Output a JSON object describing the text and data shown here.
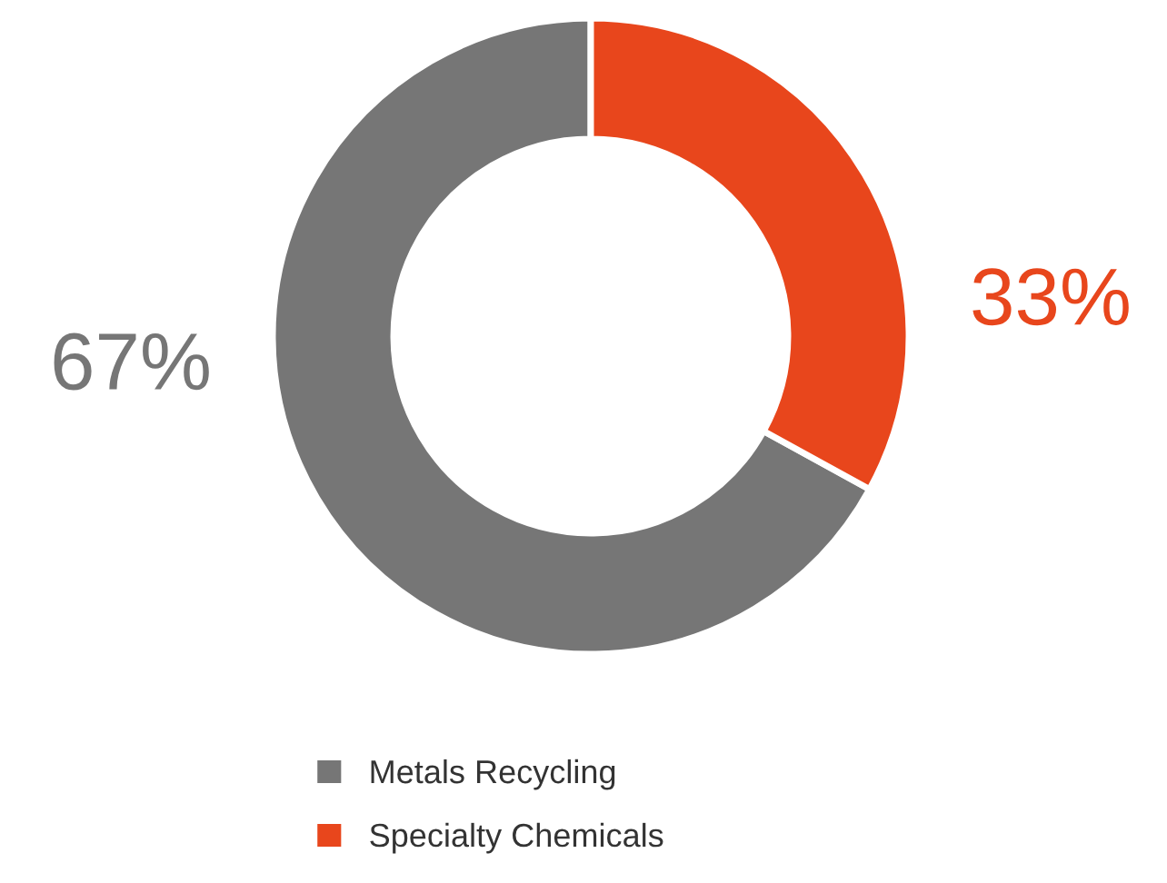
{
  "chart_data": {
    "type": "donut",
    "categories": [
      "Metals Recycling",
      "Specialty Chemicals"
    ],
    "values": [
      67,
      33
    ],
    "colors": [
      "#767676",
      "#e8461c"
    ],
    "value_labels": [
      "67%",
      "33%"
    ],
    "legend": "bottom"
  }
}
